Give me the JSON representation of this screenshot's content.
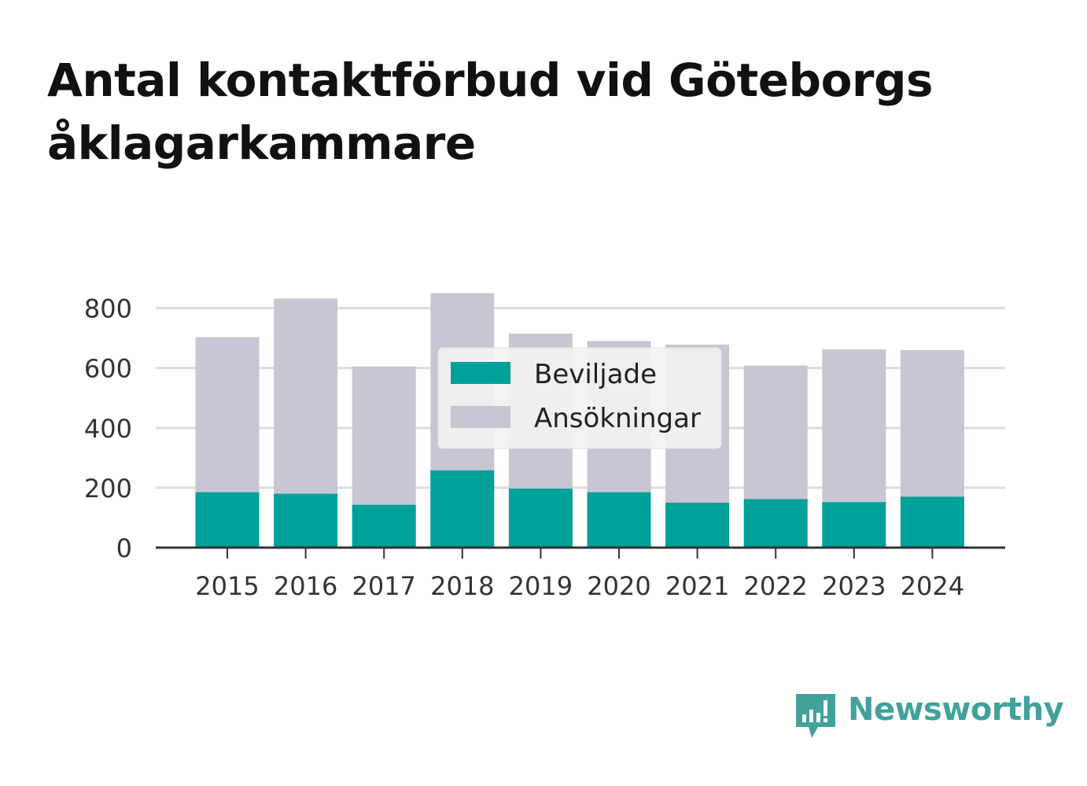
{
  "chart_data": {
    "type": "bar",
    "stacked": false,
    "title": "Antal kontaktförbud vid Göteborgs åklagarkammare",
    "categories": [
      "2015",
      "2016",
      "2017",
      "2018",
      "2019",
      "2020",
      "2021",
      "2022",
      "2023",
      "2024"
    ],
    "series": [
      {
        "name": "Ansökningar",
        "color": "#c8c6d2",
        "values": [
          703,
          832,
          605,
          850,
          715,
          690,
          678,
          608,
          662,
          660
        ]
      },
      {
        "name": "Beviljade",
        "color": "#00a19a",
        "values": [
          185,
          180,
          143,
          258,
          197,
          185,
          150,
          162,
          152,
          170
        ]
      }
    ],
    "yticks": [
      0,
      200,
      400,
      600,
      800
    ],
    "ylim": [
      0,
      870
    ],
    "xlabel": "",
    "ylabel": "",
    "grid": true,
    "legend": {
      "placement": "center",
      "entries": [
        "Beviljade",
        "Ansökningar"
      ]
    }
  },
  "branding": {
    "name": "Newsworthy",
    "color": "#41a29c",
    "icon": "newsworthy-logo-icon"
  }
}
